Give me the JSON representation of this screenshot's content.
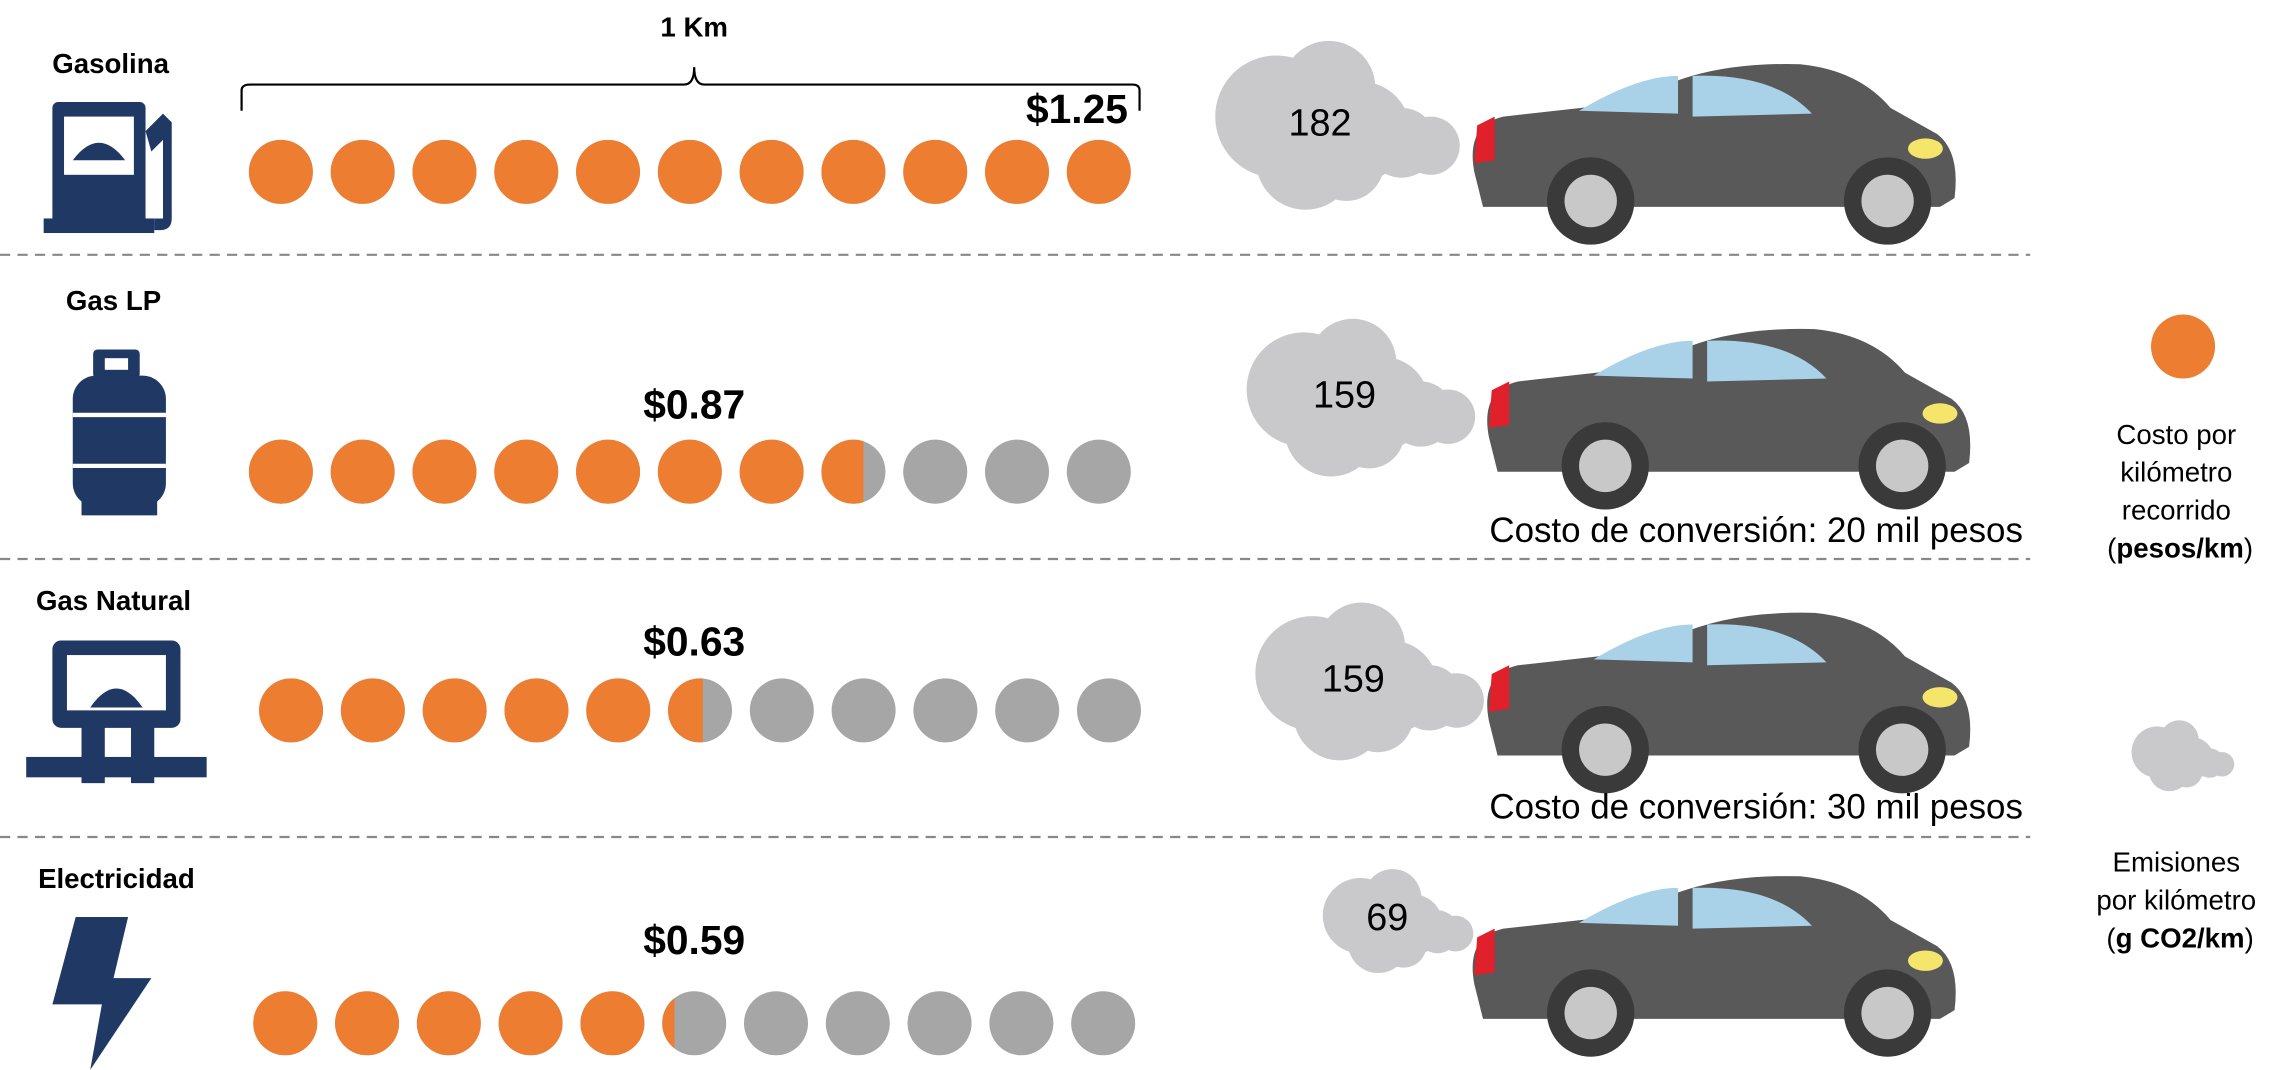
{
  "chart_data": {
    "type": "pictograph",
    "unit_label": "1 Km",
    "categories": [
      "Gasolina",
      "Gas LP",
      "Gas Natural",
      "Electricidad"
    ],
    "series": [
      {
        "name": "Costo por kilómetro recorrido (pesos/km)",
        "color": "#ed7d31",
        "empty_color": "#a6a6a6",
        "values": [
          1.25,
          0.87,
          0.63,
          0.59
        ],
        "value_labels": [
          "$1.25",
          "$0.87",
          "$0.63",
          "$0.59"
        ]
      },
      {
        "name": "Emisiones por kilómetro (g CO2/km)",
        "color": "#c9c9cb",
        "values": [
          182,
          159,
          159,
          69
        ]
      }
    ],
    "conversion_notes": [
      null,
      "Costo de conversión: 20 mil pesos",
      "Costo de conversión: 30 mil pesos",
      null
    ]
  }
}
